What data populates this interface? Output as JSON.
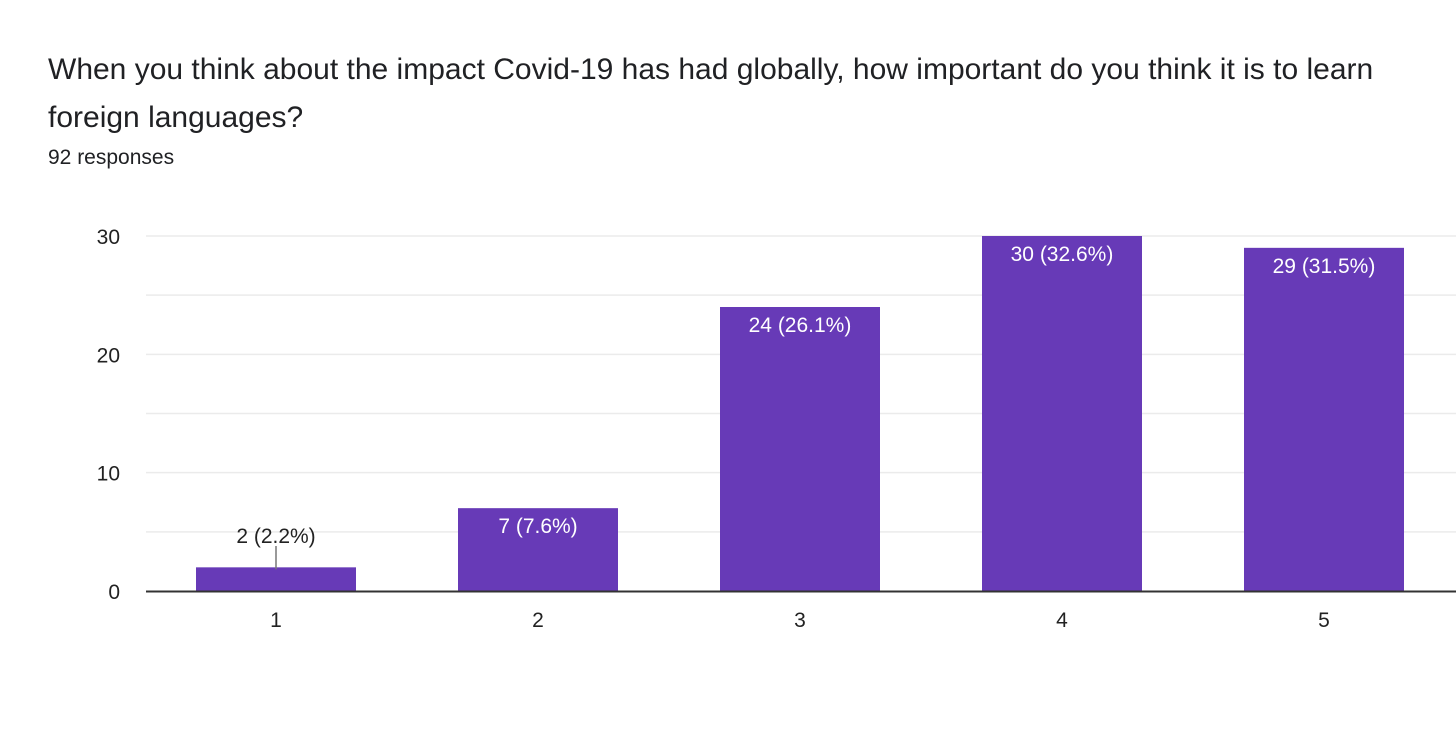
{
  "question": {
    "title": "When you think about the impact Covid-19 has had globally, how important do you think it is to learn foreign languages?",
    "responses": "92 responses"
  },
  "colors": {
    "bar": "#673ab7",
    "gridline": "#ebebeb",
    "axis": "#333333",
    "label_inside": "#ffffff",
    "label_outside": "#222222"
  },
  "chart_data": {
    "type": "bar",
    "title": "",
    "xlabel": "",
    "ylabel": "",
    "categories": [
      "1",
      "2",
      "3",
      "4",
      "5"
    ],
    "values": [
      2,
      7,
      24,
      30,
      29
    ],
    "data_labels": [
      "2 (2.2%)",
      "7 (7.6%)",
      "24 (26.1%)",
      "30 (32.6%)",
      "29 (31.5%)"
    ],
    "ylim": [
      0,
      30
    ],
    "yticks": [
      0,
      10,
      20,
      30
    ],
    "grid": true,
    "legend": "none"
  }
}
